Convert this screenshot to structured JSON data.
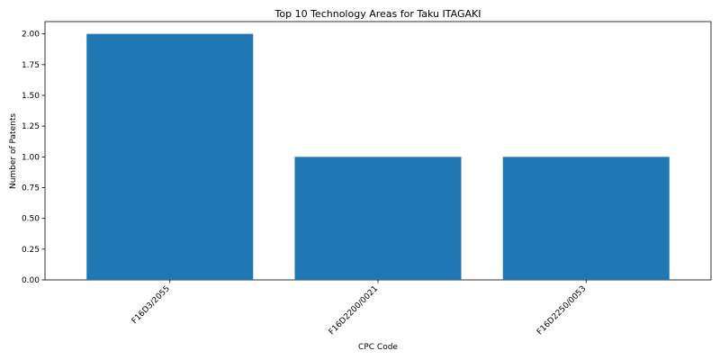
{
  "chart_data": {
    "type": "bar",
    "title": "Top 10 Technology Areas for Taku ITAGAKI",
    "xlabel": "CPC Code",
    "ylabel": "Number of Patents",
    "categories": [
      "F16D3/2055",
      "F16D2200/0021",
      "F16D2250/0053"
    ],
    "values": [
      2,
      1,
      1
    ],
    "ylim": [
      0,
      2.1
    ],
    "yticks": [
      "0.00",
      "0.25",
      "0.50",
      "0.75",
      "1.00",
      "1.25",
      "1.50",
      "1.75",
      "2.00"
    ],
    "bar_color": "#1f77b4",
    "grid": false,
    "legend": "none"
  }
}
